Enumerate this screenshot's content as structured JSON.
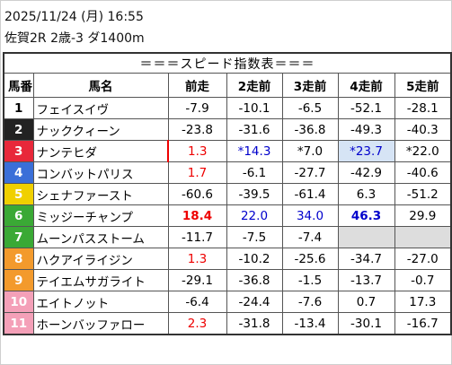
{
  "header": {
    "datetime": "2025/11/24 (月) 16:55",
    "race": "佐賀2R 2歳-3 ダ1400m"
  },
  "table": {
    "title": "＝＝＝スピード指数表＝＝＝",
    "columns": [
      "馬番",
      "馬名",
      "前走",
      "2走前",
      "3走前",
      "4走前",
      "5走前"
    ],
    "rows": [
      [
        "1",
        "フェイスイヴ",
        "-7.9",
        "-10.1",
        "-6.5",
        "-52.1",
        "-28.1"
      ],
      [
        "2",
        "ナッククィーン",
        "-23.8",
        "-31.6",
        "-36.8",
        "-49.3",
        "-40.3"
      ],
      [
        "3",
        "ナンテヒダ",
        "1.3",
        "*14.3",
        "*7.0",
        "*23.7",
        "*22.0"
      ],
      [
        "4",
        "コンバットパリス",
        "1.7",
        "-6.1",
        "-27.7",
        "-42.9",
        "-40.6"
      ],
      [
        "5",
        "シェナファースト",
        "-60.6",
        "-39.5",
        "-61.4",
        "6.3",
        "-51.2"
      ],
      [
        "6",
        "ミッジーチャンプ",
        "18.4",
        "22.0",
        "34.0",
        "46.3",
        "29.9"
      ],
      [
        "7",
        "ムーンパスストーム",
        "-11.7",
        "-7.5",
        "-7.4",
        null,
        null
      ],
      [
        "8",
        "ハクアイライジン",
        "1.3",
        "-10.2",
        "-25.6",
        "-34.7",
        "-27.0"
      ],
      [
        "9",
        "テイエムサガライト",
        "-29.1",
        "-36.8",
        "-1.5",
        "-13.7",
        "-0.7"
      ],
      [
        "10",
        "エイトノット",
        "-6.4",
        "-24.4",
        "-7.6",
        "0.7",
        "17.3"
      ],
      [
        "11",
        "ホーンバッファロー",
        "2.3",
        "-31.8",
        "-13.4",
        "-30.1",
        "-16.7"
      ]
    ]
  }
}
